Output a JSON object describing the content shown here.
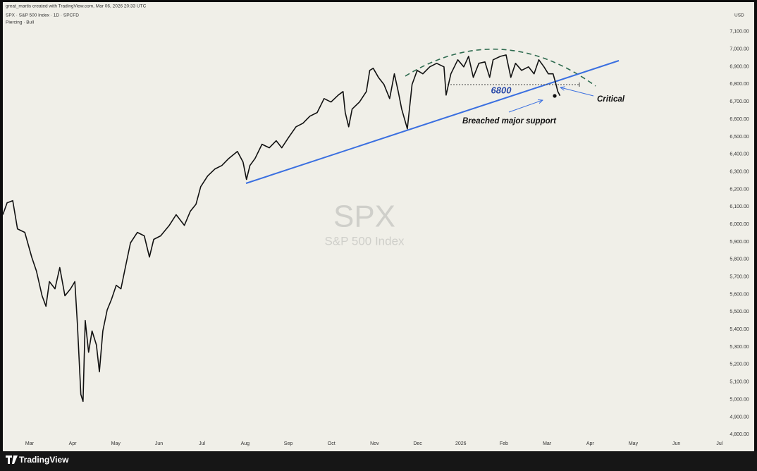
{
  "header": {
    "credit": "great_martis created with TradingView.com, Mar 06, 2026 20:33 UTC",
    "symbol": "SPX · S&P 500 Index · 1D · SPCFD",
    "pattern": "Piercing · Bull",
    "currency": "USD"
  },
  "footer": {
    "brand": "TradingView"
  },
  "chart_data": {
    "type": "line",
    "title": "SPX",
    "subtitle": "S&P 500 Index",
    "color": "#111111",
    "grid": false,
    "x": [
      -0.62,
      -0.52,
      -0.39,
      -0.28,
      -0.11,
      0.05,
      0.16,
      0.29,
      0.38,
      0.46,
      0.59,
      0.7,
      0.82,
      0.95,
      1.05,
      1.11,
      1.19,
      1.24,
      1.29,
      1.37,
      1.45,
      1.55,
      1.62,
      1.7,
      1.8,
      1.9,
      2.01,
      2.12,
      2.22,
      2.34,
      2.5,
      2.66,
      2.78,
      2.88,
      3.04,
      3.24,
      3.4,
      3.59,
      3.73,
      3.86,
      3.97,
      4.13,
      4.3,
      4.46,
      4.62,
      4.82,
      4.95,
      5.03,
      5.11,
      5.23,
      5.39,
      5.56,
      5.72,
      5.85,
      6.01,
      6.18,
      6.34,
      6.5,
      6.67,
      6.83,
      6.99,
      7.16,
      7.27,
      7.32,
      7.4,
      7.48,
      7.65,
      7.81,
      7.89,
      7.97,
      8.09,
      8.22,
      8.35,
      8.46,
      8.55,
      8.63,
      8.76,
      8.87,
      8.99,
      9.12,
      9.28,
      9.44,
      9.61,
      9.66,
      9.77,
      9.93,
      10.07,
      10.18,
      10.29,
      10.42,
      10.56,
      10.67,
      10.75,
      10.92,
      11.05,
      11.16,
      11.27,
      11.41,
      11.57,
      11.7,
      11.81,
      11.93,
      12.03,
      12.14,
      12.21,
      12.25,
      12.3
    ],
    "values": [
      6055,
      6123,
      6135,
      5974,
      5954,
      5813,
      5733,
      5592,
      5532,
      5673,
      5632,
      5753,
      5592,
      5632,
      5673,
      5431,
      5029,
      4989,
      5451,
      5270,
      5391,
      5311,
      5158,
      5391,
      5512,
      5572,
      5652,
      5632,
      5753,
      5894,
      5954,
      5934,
      5813,
      5914,
      5934,
      5994,
      6055,
      5994,
      6075,
      6115,
      6215,
      6276,
      6316,
      6336,
      6376,
      6416,
      6356,
      6256,
      6336,
      6376,
      6457,
      6437,
      6477,
      6437,
      6497,
      6557,
      6577,
      6617,
      6638,
      6718,
      6698,
      6738,
      6758,
      6638,
      6557,
      6658,
      6698,
      6758,
      6879,
      6891,
      6839,
      6798,
      6718,
      6859,
      6758,
      6658,
      6545,
      6798,
      6879,
      6859,
      6899,
      6919,
      6899,
      6738,
      6859,
      6939,
      6899,
      6959,
      6839,
      6919,
      6927,
      6839,
      6939,
      6959,
      6967,
      6839,
      6919,
      6879,
      6899,
      6859,
      6939,
      6899,
      6859,
      6859,
      6798,
      6758,
      6734
    ],
    "xlim": [
      -0.62,
      16.15
    ],
    "xticks": [
      {
        "value": 0,
        "label": "Mar"
      },
      {
        "value": 1,
        "label": "Apr"
      },
      {
        "value": 2,
        "label": "May"
      },
      {
        "value": 3,
        "label": "Jun"
      },
      {
        "value": 4,
        "label": "Jul"
      },
      {
        "value": 5,
        "label": "Aug"
      },
      {
        "value": 6,
        "label": "Sep"
      },
      {
        "value": 7,
        "label": "Oct"
      },
      {
        "value": 8,
        "label": "Nov"
      },
      {
        "value": 9,
        "label": "Dec"
      },
      {
        "value": 10,
        "label": "2026"
      },
      {
        "value": 11,
        "label": "Feb"
      },
      {
        "value": 12,
        "label": "Mar"
      },
      {
        "value": 13,
        "label": "Apr"
      },
      {
        "value": 14,
        "label": "May"
      },
      {
        "value": 15,
        "label": "Jun"
      },
      {
        "value": 16,
        "label": "Jul"
      }
    ],
    "ylim": [
      4785,
      7200
    ],
    "yticks": [
      {
        "value": 7100,
        "label": "7,100.00"
      },
      {
        "value": 7000,
        "label": "7,000.00"
      },
      {
        "value": 6900,
        "label": "6,900.00"
      },
      {
        "value": 6800,
        "label": "6,800.00"
      },
      {
        "value": 6700,
        "label": "6,700.00"
      },
      {
        "value": 6600,
        "label": "6,600.00"
      },
      {
        "value": 6500,
        "label": "6,500.00"
      },
      {
        "value": 6400,
        "label": "6,400.00"
      },
      {
        "value": 6300,
        "label": "6,300.00"
      },
      {
        "value": 6200,
        "label": "6,200.00"
      },
      {
        "value": 6100,
        "label": "6,100.00"
      },
      {
        "value": 6000,
        "label": "6,000.00"
      },
      {
        "value": 5900,
        "label": "5,900.00"
      },
      {
        "value": 5800,
        "label": "5,800.00"
      },
      {
        "value": 5700,
        "label": "5,700.00"
      },
      {
        "value": 5600,
        "label": "5,600.00"
      },
      {
        "value": 5500,
        "label": "5,500.00"
      },
      {
        "value": 5400,
        "label": "5,400.00"
      },
      {
        "value": 5300,
        "label": "5,300.00"
      },
      {
        "value": 5200,
        "label": "5,200.00"
      },
      {
        "value": 5100,
        "label": "5,100.00"
      },
      {
        "value": 5000,
        "label": "5,000.00"
      },
      {
        "value": 4900,
        "label": "4,900.00"
      },
      {
        "value": 4800,
        "label": "4,800.00"
      }
    ],
    "annotations": [
      "6800",
      "Critical",
      "Breached major support"
    ]
  }
}
